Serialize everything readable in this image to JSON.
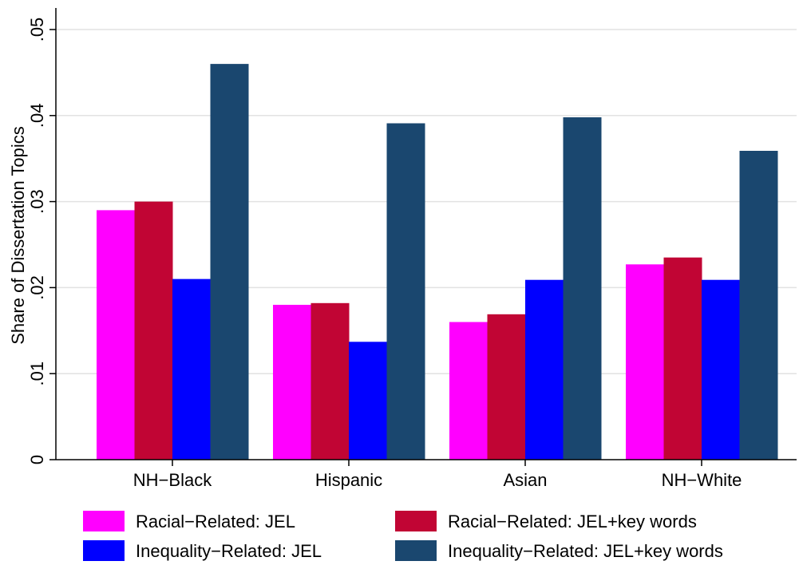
{
  "chart_data": {
    "type": "bar",
    "title": "",
    "xlabel": "",
    "ylabel": "Share of Dissertation Topics",
    "ylim": [
      0,
      0.052
    ],
    "yticks": [
      0,
      0.01,
      0.02,
      0.03,
      0.04,
      0.05
    ],
    "ytick_labels": [
      "0",
      ".01",
      ".02",
      ".03",
      ".04",
      ".05"
    ],
    "grid": true,
    "legend_position": "bottom",
    "categories": [
      "NH−Black",
      "Hispanic",
      "Asian",
      "NH−White"
    ],
    "series": [
      {
        "name": "Racial−Related: JEL",
        "color": "#ff00ff",
        "values": [
          0.029,
          0.018,
          0.016,
          0.0227
        ]
      },
      {
        "name": "Racial−Related: JEL+key words",
        "color": "#c10534",
        "values": [
          0.03,
          0.0182,
          0.0169,
          0.0235
        ]
      },
      {
        "name": "Inequality−Related: JEL",
        "color": "#0000ff",
        "values": [
          0.021,
          0.0137,
          0.0209,
          0.0209
        ]
      },
      {
        "name": "Inequality−Related: JEL+key words",
        "color": "#1a476f",
        "values": [
          0.046,
          0.0391,
          0.0398,
          0.0359
        ]
      }
    ]
  }
}
